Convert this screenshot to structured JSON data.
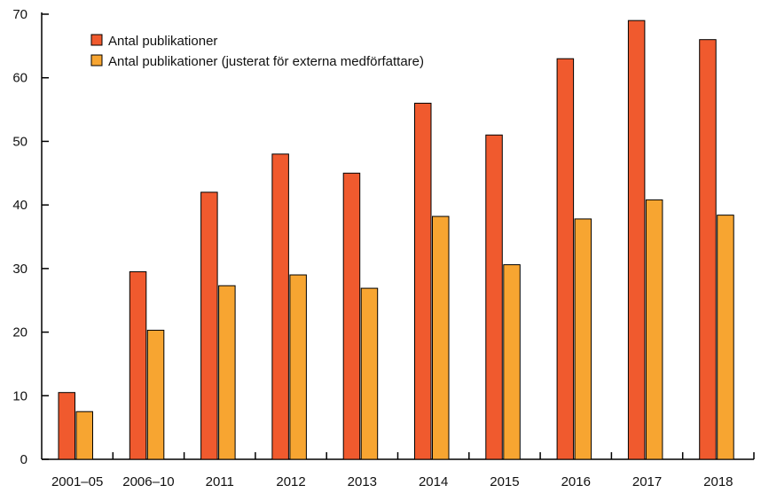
{
  "chart_data": {
    "type": "bar",
    "categories": [
      "2001–05",
      "2006–10",
      "2011",
      "2012",
      "2013",
      "2014",
      "2015",
      "2016",
      "2017",
      "2018"
    ],
    "series": [
      {
        "name": "Antal publikationer",
        "color": "#f05a2e",
        "values": [
          10.5,
          29.5,
          42,
          48,
          45,
          56,
          51,
          63,
          69,
          66
        ]
      },
      {
        "name": "Antal publikationer (justerat för externa medförfattare)",
        "color": "#f7a531",
        "values": [
          7.5,
          20.3,
          27.3,
          29,
          26.9,
          38.2,
          30.6,
          37.8,
          40.8,
          38.4
        ]
      }
    ],
    "ylim": [
      0,
      70
    ],
    "yticks": [
      0,
      10,
      20,
      30,
      40,
      50,
      60,
      70
    ],
    "legend_position": "top-left",
    "grid": false
  }
}
